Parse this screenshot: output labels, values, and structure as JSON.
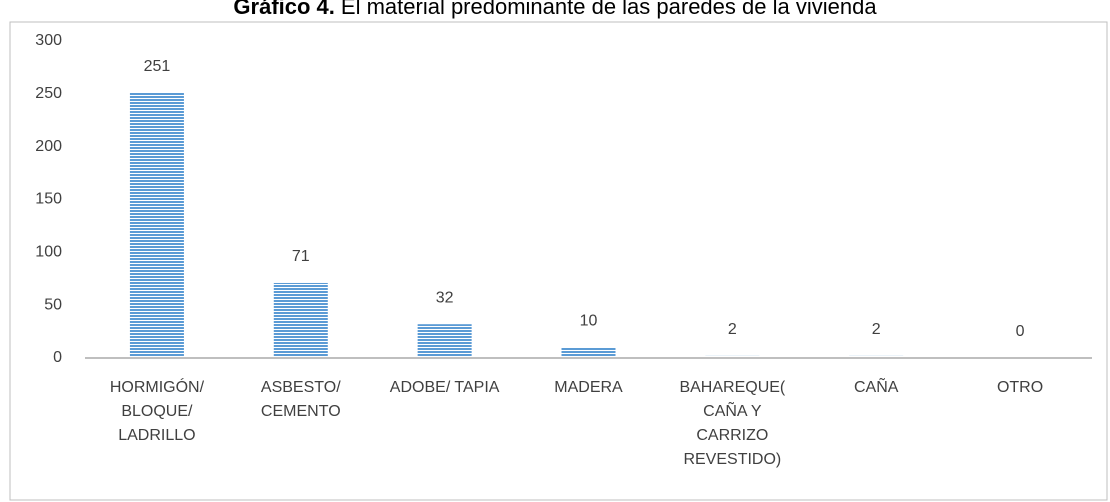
{
  "chart_data": {
    "type": "bar",
    "title_prefix": "Gráfico 4.",
    "title": "El material predominante de las paredes de la vivienda",
    "categories": [
      [
        "HORMIGÓN/",
        "BLOQUE/",
        "LADRILLO"
      ],
      [
        "ASBESTO/",
        "CEMENTO"
      ],
      [
        "ADOBE/ TAPIA"
      ],
      [
        "MADERA"
      ],
      [
        "BAHAREQUE(",
        "CAÑA Y",
        "CARRIZO",
        "REVESTIDO)"
      ],
      [
        "CAÑA"
      ],
      [
        "OTRO"
      ]
    ],
    "values": [
      251,
      71,
      32,
      10,
      2,
      2,
      0
    ],
    "color": "#5b9bd5",
    "ylim": [
      0,
      300
    ],
    "yticks": [
      0,
      50,
      100,
      150,
      200,
      250,
      300
    ],
    "grid": false
  }
}
